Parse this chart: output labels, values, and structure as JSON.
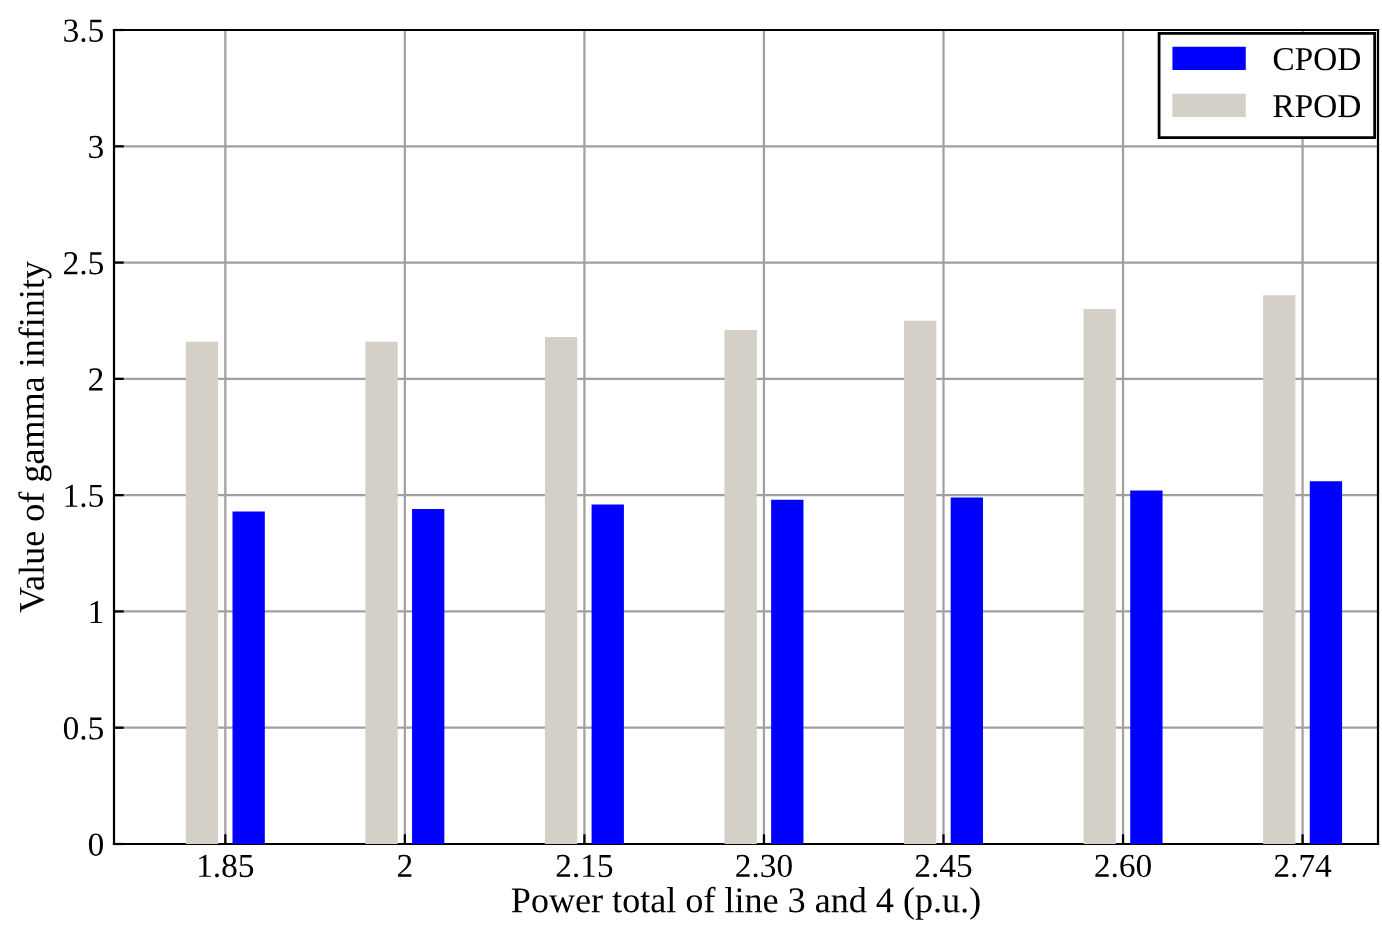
{
  "chart_data": {
    "type": "bar",
    "xlabel": "Power total of line 3 and 4 (p.u.)",
    "ylabel": "Value of gamma infinity",
    "categories": [
      "1.85",
      "2",
      "2.15",
      "2.30",
      "2.45",
      "2.60",
      "2.74"
    ],
    "series": [
      {
        "name": "CPOD",
        "color": "#0000ff",
        "values": [
          1.43,
          1.44,
          1.46,
          1.48,
          1.49,
          1.52,
          1.56
        ]
      },
      {
        "name": "RPOD",
        "color": "#d4d0c8",
        "values": [
          2.16,
          2.16,
          2.18,
          2.21,
          2.25,
          2.3,
          2.36
        ]
      }
    ],
    "ylim": [
      0,
      3.5
    ],
    "yticks": [
      0,
      0.5,
      1,
      1.5,
      2,
      2.5,
      3,
      3.5
    ],
    "grid": true,
    "legend": "top right"
  }
}
